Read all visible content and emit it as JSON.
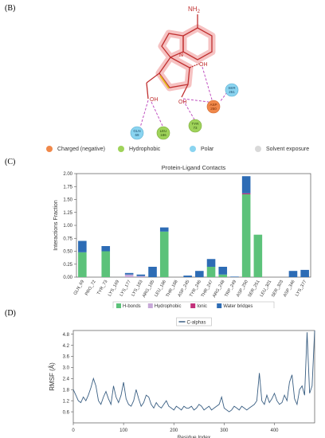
{
  "panel_letters": [
    "(B)",
    "(C)",
    "(D)"
  ],
  "diagram": {
    "ring_label": "NH",
    "ring_label_sub": "2",
    "atoms": {
      "n": "N",
      "oh1": "OH",
      "oh2": "OH",
      "oh3": "OH"
    },
    "residues": [
      {
        "name": "ASP",
        "num": "250",
        "type": "charged"
      },
      {
        "name": "SER",
        "num": "251",
        "type": "polar"
      },
      {
        "name": "TYR",
        "num": "73",
        "type": "hydrophobic"
      },
      {
        "name": "LEU",
        "num": "186",
        "type": "hydrophobic"
      },
      {
        "name": "GLN",
        "num": "69",
        "type": "polar"
      }
    ],
    "legend": [
      {
        "label": "Charged (negative)",
        "color": "#f0884a"
      },
      {
        "label": "Hydrophobic",
        "color": "#9fd35a"
      },
      {
        "label": "Polar",
        "color": "#8ad4f0"
      },
      {
        "label": "Solvent exposure",
        "color": "#d9d9d9"
      }
    ]
  },
  "chart_data": [
    {
      "type": "bar",
      "title": "Protein-Ligand Contacts",
      "ylabel": "Interactions Fraction",
      "ylim": [
        0,
        2.0
      ],
      "yticks": [
        "0.00",
        "0.25",
        "0.50",
        "0.75",
        "1.00",
        "1.25",
        "1.50",
        "1.75",
        "2.00"
      ],
      "categories": [
        "GLN_69",
        "PRO_72",
        "TYR_73",
        "LYS_169",
        "LYS_177",
        "LYS_183",
        "ARG_185",
        "LEU_186",
        "THR_188",
        "ASP_245",
        "TYR_246",
        "THR_247",
        "ARG_248",
        "TRP_249",
        "ASP_250",
        "SER_251",
        "LEU_301",
        "SER_303",
        "ASP_346",
        "LYS_377"
      ],
      "series": [
        {
          "name": "H-bonds",
          "color": "#5cc27a",
          "values": [
            0.48,
            0,
            0.5,
            0,
            0,
            0,
            0,
            0.88,
            0,
            0,
            0,
            0.2,
            0.05,
            0,
            1.6,
            0.82,
            0,
            0,
            0,
            0
          ]
        },
        {
          "name": "Hydrophobic",
          "color": "#c7a8d8",
          "values": [
            0,
            0,
            0,
            0,
            0.05,
            0.02,
            0,
            0,
            0,
            0,
            0,
            0,
            0,
            0,
            0,
            0,
            0,
            0,
            0,
            0
          ]
        },
        {
          "name": "Ionic",
          "color": "#c2307a",
          "values": [
            0,
            0,
            0,
            0,
            0,
            0,
            0,
            0,
            0,
            0,
            0,
            0,
            0,
            0,
            0.02,
            0,
            0,
            0,
            0,
            0
          ]
        },
        {
          "name": "Water bridges",
          "color": "#2d6cb5",
          "values": [
            0.22,
            0,
            0.1,
            0,
            0.03,
            0.03,
            0.2,
            0.08,
            0,
            0.03,
            0.12,
            0.15,
            0.15,
            0.01,
            0.33,
            0,
            0,
            0,
            0.12,
            0.14
          ]
        }
      ],
      "legend_labels": [
        "H-bonds",
        "Hydrophobic",
        "Ionic",
        "Water bridges"
      ]
    },
    {
      "type": "line",
      "legend": "C-alphas",
      "xlabel": "Residue Index",
      "ylabel": "RMSF (Å)",
      "xlim": [
        0,
        480
      ],
      "ylim": [
        0,
        5.0
      ],
      "xticks": [
        "0",
        "100",
        "200",
        "300",
        "400"
      ],
      "yticks": [
        "0.6",
        "1.2",
        "1.8",
        "2.4",
        "3.0",
        "3.6",
        "4.2",
        "4.8"
      ],
      "color": "#3a5f83",
      "series": [
        {
          "x": [
            0,
            5,
            10,
            15,
            20,
            25,
            30,
            35,
            40,
            45,
            50,
            55,
            60,
            65,
            70,
            75,
            80,
            85,
            90,
            95,
            100,
            105,
            110,
            115,
            120,
            125,
            130,
            135,
            140,
            145,
            150,
            155,
            160,
            165,
            170,
            175,
            180,
            185,
            190,
            195,
            200,
            205,
            210,
            215,
            220,
            225,
            230,
            235,
            240,
            245,
            250,
            255,
            260,
            265,
            270,
            275,
            280,
            285,
            290,
            295,
            300,
            305,
            310,
            315,
            320,
            325,
            330,
            335,
            340,
            345,
            350,
            355,
            360,
            365,
            370,
            375,
            380,
            385,
            390,
            395,
            400,
            405,
            410,
            415,
            420,
            425,
            430,
            435,
            440,
            445,
            450,
            455,
            460,
            465,
            470,
            475,
            480
          ],
          "y": [
            1.8,
            1.5,
            1.2,
            1.1,
            1.4,
            1.2,
            1.5,
            1.9,
            2.4,
            2.0,
            1.2,
            1.0,
            1.4,
            1.7,
            1.3,
            1.0,
            2.0,
            1.4,
            1.1,
            1.5,
            2.2,
            1.3,
            1.0,
            0.9,
            1.2,
            1.8,
            1.3,
            0.9,
            1.1,
            1.5,
            1.4,
            1.0,
            0.8,
            1.1,
            0.9,
            0.8,
            1.0,
            1.2,
            0.9,
            0.8,
            0.7,
            0.9,
            0.8,
            0.7,
            0.9,
            0.8,
            0.8,
            0.9,
            0.7,
            0.8,
            1.0,
            0.9,
            0.7,
            0.8,
            0.9,
            0.7,
            0.8,
            0.9,
            1.0,
            1.4,
            0.8,
            0.7,
            0.6,
            0.7,
            0.9,
            0.8,
            0.7,
            0.9,
            0.8,
            0.7,
            0.8,
            0.9,
            1.0,
            1.2,
            2.7,
            1.2,
            1.0,
            1.5,
            1.1,
            1.3,
            1.6,
            1.2,
            1.0,
            1.1,
            1.5,
            1.2,
            2.2,
            2.6,
            1.3,
            1.0,
            1.8,
            2.0,
            1.5,
            4.9,
            1.6,
            2.0,
            5.0
          ]
        }
      ]
    }
  ]
}
